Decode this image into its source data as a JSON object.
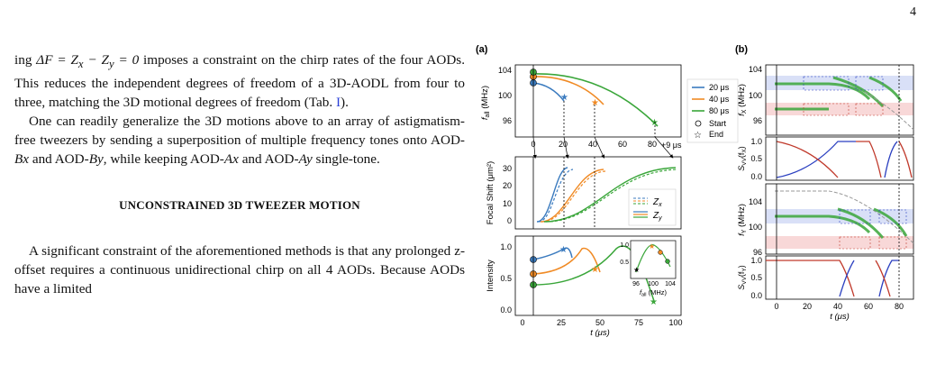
{
  "page_number": "4",
  "text": {
    "p1_parts": [
      "ing ",
      "ΔF = Z",
      "x",
      " − Z",
      "y",
      " = 0",
      " imposes a constraint on the chirp rates of the four AODs. This reduces the independent degrees of freedom of a 3D-AODL from four to three, matching the 3D motional degrees of freedom (Tab. ",
      "I",
      ")."
    ],
    "p2_parts": [
      "One can readily generalize the 3D motions above to an array of astigmatism-free tweezers by sending a superposition of multiple frequency tones onto AOD-",
      "Bx",
      " and AOD-",
      "By",
      ", while keeping AOD-",
      "Ax",
      " and AOD-",
      "Ay",
      " single-tone."
    ],
    "heading": "UNCONSTRAINED 3D TWEEZER MOTION",
    "p3": "A significant constraint of the aforementioned methods is that any prolonged z-offset requires a continuous unidirectional chirp on all 4 AODs. Because AODs have a limited"
  },
  "figure": {
    "panel_a_label": "(a)",
    "panel_b_label": "(b)",
    "colors": {
      "s20": "#3b7bbf",
      "s40": "#f08a24",
      "s80": "#3aa63a",
      "blue_band": "#d9e0f7",
      "red_band": "#f8d8d8",
      "red_curve": "#c0392b",
      "blue_curve": "#2a3fc0"
    },
    "a_top": {
      "ylabel": "f",
      "ylabel_sub": "all",
      "ylabel_unit": " (MHz)",
      "yticks": [
        "104",
        "100",
        "96"
      ],
      "xticks": [
        "0",
        "20",
        "40",
        "60",
        "80"
      ],
      "annotation": "+9 μs"
    },
    "a_mid": {
      "ylabel": "Focal Shift (μm²)",
      "yticks": [
        "30",
        "20",
        "10",
        "0"
      ]
    },
    "a_bot": {
      "ylabel": "Intensity",
      "yticks": [
        "1.0",
        "0.5",
        "0.0"
      ],
      "xticks": [
        "0",
        "25",
        "50",
        "75",
        "100"
      ],
      "xlabel": "t (μs)",
      "inset": {
        "yticks": [
          "1.0",
          "0.5"
        ],
        "xticks": [
          "96",
          "100",
          "104"
        ],
        "xlabel": "f",
        "xlabel_sub": "all",
        "xlabel_unit": " (MHz)"
      }
    },
    "legend_a": {
      "items": [
        "20 μs",
        "40 μs",
        "80 μs"
      ],
      "start": "Start",
      "end": "End"
    },
    "legend_mid": {
      "zx": "Z",
      "zx_sub": "x",
      "zy": "Z",
      "zy_sub": "y"
    },
    "b": {
      "fx_label": "f",
      "fx_sub": "X",
      "fx_unit": " (MHz)",
      "fy_label": "f",
      "fy_sub": "Y",
      "fy_unit": " (MHz)",
      "s_label": "S",
      "s_sub": "VV",
      "s_arg_x": "(f",
      "s_arg_x_sub": "X",
      "s_arg_y_sub": "Y",
      "s_arg_close": ")",
      "yticks_f": [
        "104",
        "100",
        "96"
      ],
      "yticks_s": [
        "1.0",
        "0.5",
        "0.0"
      ],
      "xticks": [
        "0",
        "20",
        "40",
        "60",
        "80"
      ],
      "xlabel": "t (μs)"
    }
  },
  "chart_data": [
    {
      "type": "line",
      "panel": "(a) top",
      "ylabel": "f_all (MHz)",
      "series": [
        {
          "name": "20 μs",
          "x": [
            0,
            28
          ],
          "y": [
            102,
            100
          ]
        },
        {
          "name": "40 μs",
          "x": [
            0,
            49
          ],
          "y": [
            103,
            99
          ]
        },
        {
          "name": "80 μs",
          "x": [
            0,
            89
          ],
          "y": [
            103.5,
            96
          ]
        }
      ]
    },
    {
      "type": "line",
      "panel": "(a) middle",
      "ylabel": "Focal Shift (μm²)",
      "legend": [
        "Z_x",
        "Z_y"
      ],
      "ylim": [
        0,
        35
      ]
    },
    {
      "type": "line",
      "panel": "(a) bottom",
      "ylabel": "Intensity",
      "xlabel": "t (μs)",
      "xlim": [
        0,
        100
      ],
      "ylim": [
        0,
        1.1
      ]
    },
    {
      "type": "heatmap",
      "panel": "(b)",
      "ylabels": [
        "f_X (MHz)",
        "S_VV(f_X)",
        "f_Y (MHz)",
        "S_VV(f_Y)"
      ],
      "xlabel": "t (μs)"
    }
  ]
}
